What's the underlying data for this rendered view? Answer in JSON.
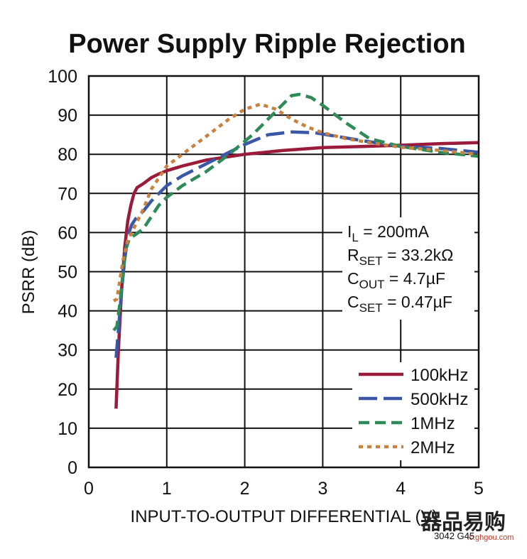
{
  "chart_data": {
    "type": "line",
    "title": "Power Supply Ripple Rejection",
    "xlabel": "INPUT-TO-OUTPUT DIFFERENTIAL (V)",
    "ylabel": "PSRR (dB)",
    "xlim": [
      0,
      5
    ],
    "ylim": [
      0,
      100
    ],
    "xticks": [
      "0",
      "1",
      "2",
      "3",
      "4",
      "5"
    ],
    "yticks": [
      "0",
      "10",
      "20",
      "30",
      "40",
      "50",
      "60",
      "70",
      "80",
      "90",
      "100"
    ],
    "grid": true,
    "legend_position": "bottom-right",
    "annotations": [
      {
        "main": "I",
        "sub": "L",
        "rest": " = 200mA"
      },
      {
        "main": "R",
        "sub": "SET",
        "rest": " = 33.2kΩ"
      },
      {
        "main": "C",
        "sub": "OUT",
        "rest": " = 4.7µF"
      },
      {
        "main": "C",
        "sub": "SET",
        "rest": " = 0.47µF"
      }
    ],
    "figure_id": "3042 G45",
    "series": [
      {
        "name": "100kHz",
        "color": "#9b1b3a",
        "dash": "solid",
        "x": [
          0.35,
          0.38,
          0.42,
          0.46,
          0.5,
          0.54,
          0.58,
          0.62,
          0.7,
          0.8,
          0.9,
          1.0,
          1.2,
          1.5,
          2.0,
          2.5,
          3.0,
          3.5,
          4.0,
          4.5,
          5.0
        ],
        "y": [
          15,
          30,
          45,
          56,
          63,
          67,
          70,
          71.5,
          72.5,
          74,
          75,
          75.8,
          77,
          78.5,
          80,
          81,
          81.7,
          82,
          82.3,
          82.7,
          83
        ]
      },
      {
        "name": "500kHz",
        "color": "#3a56a6",
        "dash": "longdash",
        "x": [
          0.35,
          0.38,
          0.42,
          0.46,
          0.5,
          0.55,
          0.6,
          0.7,
          0.8,
          1.0,
          1.2,
          1.5,
          1.8,
          2.0,
          2.3,
          2.6,
          2.9,
          3.2,
          3.5,
          4.0,
          4.5,
          5.0
        ],
        "y": [
          28,
          35,
          45,
          53,
          59,
          62,
          63.5,
          65.5,
          68,
          72,
          74.5,
          77.5,
          80.5,
          82.5,
          85,
          85.7,
          85.5,
          84.5,
          83.5,
          82,
          81.5,
          80.5
        ]
      },
      {
        "name": "1MHz",
        "color": "#2e8b57",
        "dash": "dash",
        "x": [
          0.32,
          0.36,
          0.4,
          0.44,
          0.48,
          0.52,
          0.6,
          0.7,
          0.8,
          0.9,
          1.0,
          1.2,
          1.5,
          1.8,
          2.1,
          2.4,
          2.6,
          2.7,
          2.85,
          3.0,
          3.3,
          3.6,
          4.0,
          4.5,
          5.0
        ],
        "y": [
          35,
          36,
          42,
          50,
          56,
          58.5,
          59.5,
          61,
          64,
          67,
          69,
          72,
          75.5,
          80,
          85,
          91,
          95,
          95.3,
          94.5,
          92.5,
          88,
          84,
          82,
          80.5,
          79.5
        ]
      },
      {
        "name": "2MHz",
        "color": "#c8823c",
        "dash": "dot",
        "x": [
          0.32,
          0.36,
          0.4,
          0.44,
          0.5,
          0.6,
          0.7,
          0.8,
          0.9,
          1.0,
          1.2,
          1.5,
          1.8,
          2.0,
          2.2,
          2.4,
          2.6,
          2.8,
          3.0,
          3.3,
          3.6,
          4.0,
          4.5,
          5.0
        ],
        "y": [
          42.5,
          43,
          48,
          53,
          58,
          62,
          66,
          71,
          74,
          77,
          80,
          84.5,
          89,
          91.5,
          92.8,
          91.5,
          89,
          87,
          85.5,
          84,
          83,
          81.8,
          81,
          80
        ]
      }
    ]
  },
  "watermark": {
    "text": "器品易购",
    "url": "ic.ghgou.com"
  }
}
